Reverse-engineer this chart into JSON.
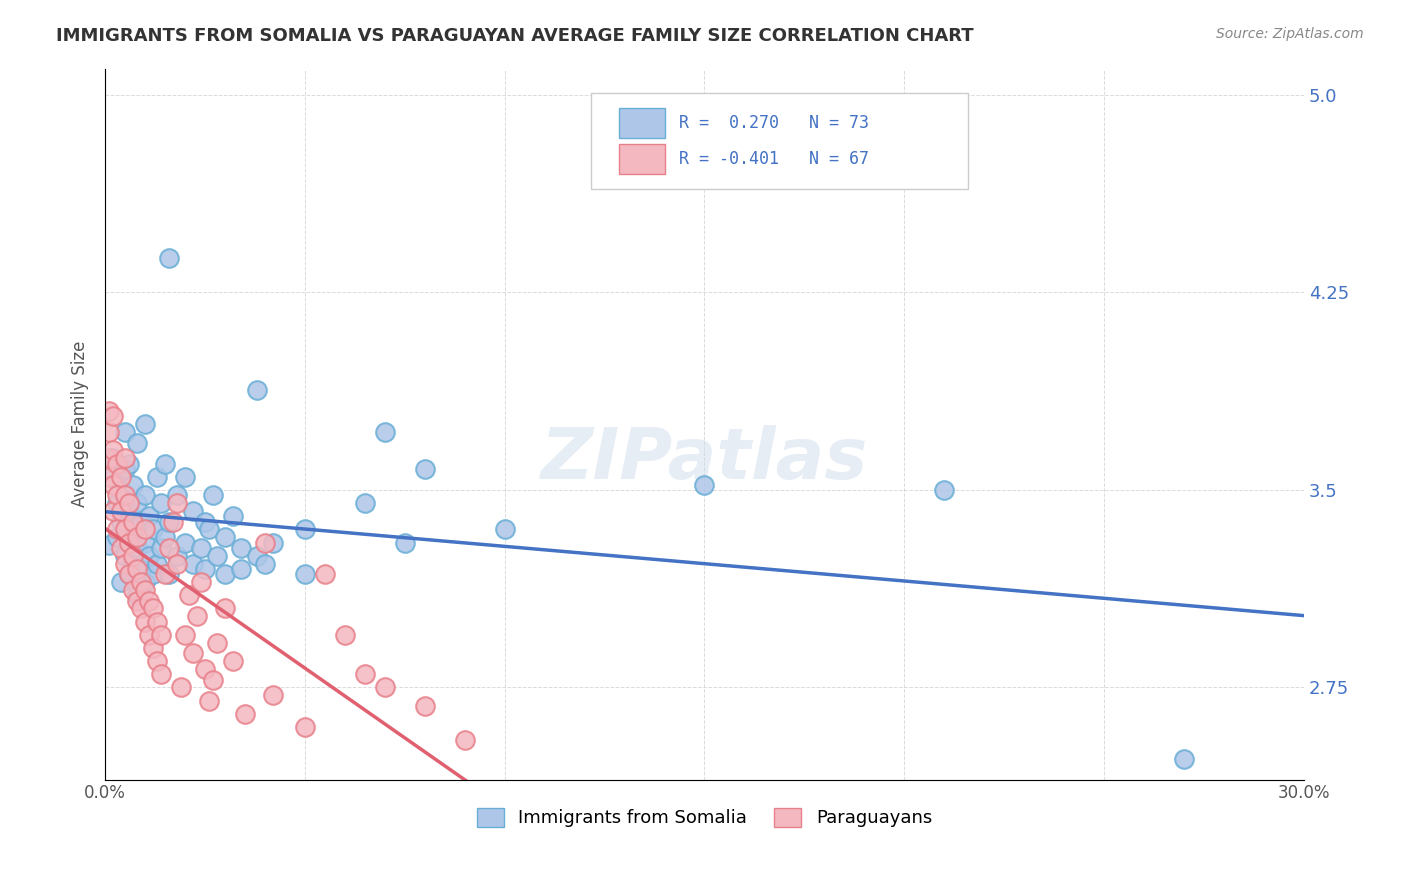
{
  "title": "IMMIGRANTS FROM SOMALIA VS PARAGUAYAN AVERAGE FAMILY SIZE CORRELATION CHART",
  "source": "Source: ZipAtlas.com",
  "ylabel": "Average Family Size",
  "xmin": 0.0,
  "xmax": 0.3,
  "ymin": 2.4,
  "ymax": 5.1,
  "yticks": [
    2.75,
    3.5,
    4.25,
    5.0
  ],
  "xticks": [
    0.0,
    0.05,
    0.1,
    0.15,
    0.2,
    0.25,
    0.3
  ],
  "xtick_labels": [
    "0.0%",
    "",
    "",
    "",
    "",
    "",
    "30.0%"
  ],
  "legend_entries": [
    {
      "label": "R =  0.270   N = 73",
      "color_face": "#aec6e8",
      "color_edge": "#6aaed6"
    },
    {
      "label": "R = -0.401   N = 67",
      "color_face": "#f4b8c1",
      "color_edge": "#e8808a"
    }
  ],
  "bottom_legend": [
    "Immigrants from Somalia",
    "Paraguayans"
  ],
  "somalia_color_face": "#aec6e8",
  "somalia_color_edge": "#6aaed6",
  "paraguay_color_face": "#f4b8c1",
  "paraguay_color_edge": "#e8808a",
  "somalia_trend_color": "#4472c4",
  "paraguay_trend_solid_color": "#e06070",
  "paraguay_trend_dashed_color": "#e8b0b8",
  "watermark": "ZIPatlas",
  "background_color": "#ffffff",
  "grid_color": "#cccccc",
  "title_color": "#333333",
  "axis_label_color": "#555555",
  "right_axis_color": "#4472c4",
  "somalia_scatter": [
    [
      0.001,
      3.29
    ],
    [
      0.002,
      3.55
    ],
    [
      0.002,
      3.62
    ],
    [
      0.003,
      3.32
    ],
    [
      0.003,
      3.45
    ],
    [
      0.004,
      3.15
    ],
    [
      0.004,
      3.38
    ],
    [
      0.004,
      3.5
    ],
    [
      0.005,
      3.25
    ],
    [
      0.005,
      3.4
    ],
    [
      0.005,
      3.58
    ],
    [
      0.005,
      3.72
    ],
    [
      0.006,
      3.18
    ],
    [
      0.006,
      3.3
    ],
    [
      0.006,
      3.42
    ],
    [
      0.006,
      3.6
    ],
    [
      0.007,
      3.22
    ],
    [
      0.007,
      3.35
    ],
    [
      0.007,
      3.52
    ],
    [
      0.008,
      3.1
    ],
    [
      0.008,
      3.28
    ],
    [
      0.008,
      3.45
    ],
    [
      0.008,
      3.68
    ],
    [
      0.009,
      3.2
    ],
    [
      0.009,
      3.38
    ],
    [
      0.01,
      3.15
    ],
    [
      0.01,
      3.3
    ],
    [
      0.01,
      3.48
    ],
    [
      0.01,
      3.75
    ],
    [
      0.011,
      3.25
    ],
    [
      0.011,
      3.4
    ],
    [
      0.012,
      3.18
    ],
    [
      0.012,
      3.35
    ],
    [
      0.013,
      3.22
    ],
    [
      0.013,
      3.55
    ],
    [
      0.014,
      3.28
    ],
    [
      0.014,
      3.45
    ],
    [
      0.015,
      3.32
    ],
    [
      0.015,
      3.6
    ],
    [
      0.016,
      3.18
    ],
    [
      0.016,
      3.38
    ],
    [
      0.016,
      4.38
    ],
    [
      0.018,
      3.25
    ],
    [
      0.018,
      3.48
    ],
    [
      0.02,
      3.3
    ],
    [
      0.02,
      3.55
    ],
    [
      0.022,
      3.22
    ],
    [
      0.022,
      3.42
    ],
    [
      0.024,
      3.28
    ],
    [
      0.025,
      3.2
    ],
    [
      0.025,
      3.38
    ],
    [
      0.026,
      3.35
    ],
    [
      0.027,
      3.48
    ],
    [
      0.028,
      3.25
    ],
    [
      0.03,
      3.18
    ],
    [
      0.03,
      3.32
    ],
    [
      0.032,
      3.4
    ],
    [
      0.034,
      3.2
    ],
    [
      0.034,
      3.28
    ],
    [
      0.038,
      3.88
    ],
    [
      0.038,
      3.25
    ],
    [
      0.04,
      3.22
    ],
    [
      0.042,
      3.3
    ],
    [
      0.05,
      3.35
    ],
    [
      0.05,
      3.18
    ],
    [
      0.065,
      3.45
    ],
    [
      0.07,
      3.72
    ],
    [
      0.075,
      3.3
    ],
    [
      0.08,
      3.58
    ],
    [
      0.1,
      3.35
    ],
    [
      0.15,
      3.52
    ],
    [
      0.21,
      3.5
    ],
    [
      0.27,
      2.48
    ]
  ],
  "paraguay_scatter": [
    [
      0.001,
      3.55
    ],
    [
      0.001,
      3.62
    ],
    [
      0.001,
      3.72
    ],
    [
      0.001,
      3.8
    ],
    [
      0.002,
      3.42
    ],
    [
      0.002,
      3.52
    ],
    [
      0.002,
      3.65
    ],
    [
      0.002,
      3.78
    ],
    [
      0.003,
      3.35
    ],
    [
      0.003,
      3.48
    ],
    [
      0.003,
      3.6
    ],
    [
      0.004,
      3.28
    ],
    [
      0.004,
      3.42
    ],
    [
      0.004,
      3.55
    ],
    [
      0.005,
      3.22
    ],
    [
      0.005,
      3.35
    ],
    [
      0.005,
      3.48
    ],
    [
      0.005,
      3.62
    ],
    [
      0.006,
      3.18
    ],
    [
      0.006,
      3.3
    ],
    [
      0.006,
      3.45
    ],
    [
      0.007,
      3.12
    ],
    [
      0.007,
      3.25
    ],
    [
      0.007,
      3.38
    ],
    [
      0.008,
      3.08
    ],
    [
      0.008,
      3.2
    ],
    [
      0.008,
      3.32
    ],
    [
      0.009,
      3.05
    ],
    [
      0.009,
      3.15
    ],
    [
      0.01,
      3.0
    ],
    [
      0.01,
      3.12
    ],
    [
      0.01,
      3.35
    ],
    [
      0.011,
      2.95
    ],
    [
      0.011,
      3.08
    ],
    [
      0.012,
      2.9
    ],
    [
      0.012,
      3.05
    ],
    [
      0.013,
      2.85
    ],
    [
      0.013,
      3.0
    ],
    [
      0.014,
      2.8
    ],
    [
      0.014,
      2.95
    ],
    [
      0.015,
      3.18
    ],
    [
      0.016,
      3.28
    ],
    [
      0.017,
      3.38
    ],
    [
      0.018,
      3.22
    ],
    [
      0.018,
      3.45
    ],
    [
      0.019,
      2.75
    ],
    [
      0.02,
      2.95
    ],
    [
      0.021,
      3.1
    ],
    [
      0.022,
      2.88
    ],
    [
      0.023,
      3.02
    ],
    [
      0.024,
      3.15
    ],
    [
      0.025,
      2.82
    ],
    [
      0.026,
      2.7
    ],
    [
      0.027,
      2.78
    ],
    [
      0.028,
      2.92
    ],
    [
      0.03,
      3.05
    ],
    [
      0.032,
      2.85
    ],
    [
      0.035,
      2.65
    ],
    [
      0.04,
      3.3
    ],
    [
      0.042,
      2.72
    ],
    [
      0.05,
      2.6
    ],
    [
      0.055,
      3.18
    ],
    [
      0.06,
      2.95
    ],
    [
      0.065,
      2.8
    ],
    [
      0.07,
      2.75
    ],
    [
      0.08,
      2.68
    ],
    [
      0.09,
      2.55
    ]
  ]
}
